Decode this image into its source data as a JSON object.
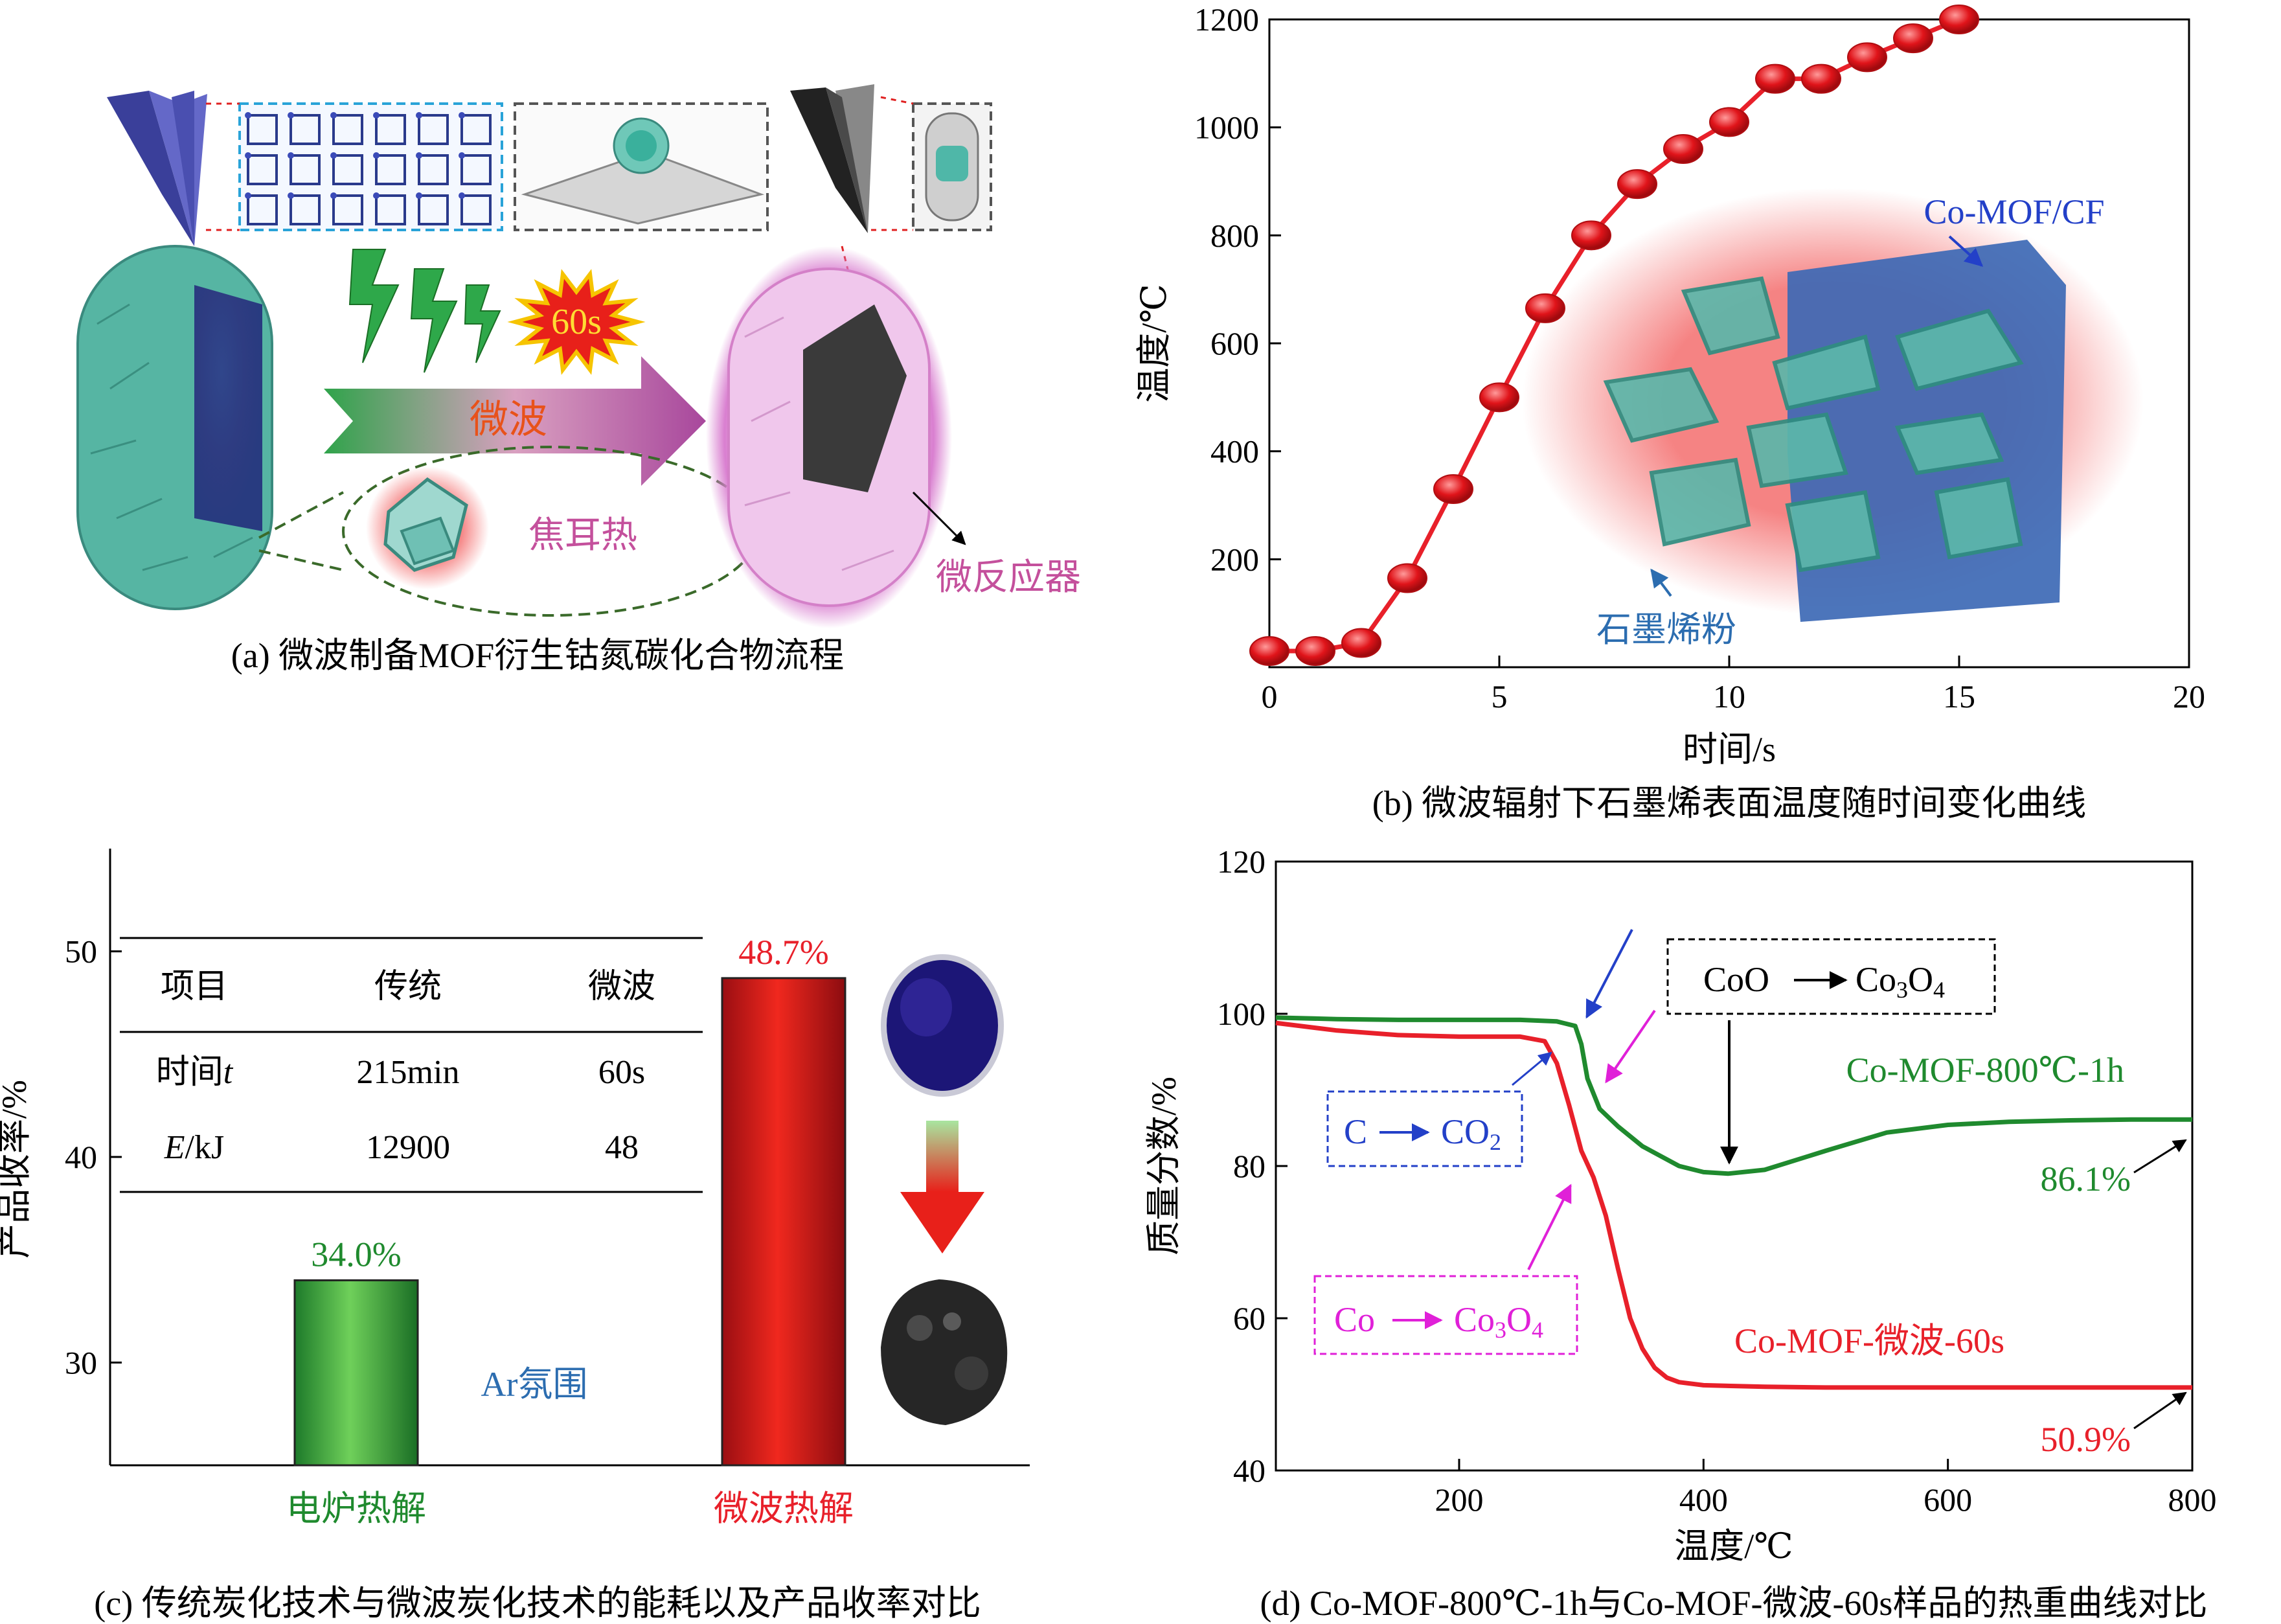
{
  "colors": {
    "red": "#e8202a",
    "green": "#1f8a2e",
    "blue": "#2340c8",
    "steel_blue": "#2c6db0",
    "magenta": "#e020d8",
    "teal": "#4fb7a8",
    "pink": "#c4509c",
    "orange": "#e8521a"
  },
  "panel_a": {
    "caption": "(a) 微波制备MOF衍生钴氮碳化合物流程",
    "label_60s": "60s",
    "label_microwave": "微波",
    "label_joule": "焦耳热",
    "label_microreactor": "微反应器",
    "icons": [
      "lightning-icon",
      "starburst-icon",
      "arrow-right-icon"
    ]
  },
  "chart_data": [
    {
      "id": "b",
      "type": "line",
      "caption": "(b) 微波辐射下石墨烯表面温度随时间变化曲线",
      "xlabel": "时间/s",
      "ylabel": "温度/℃",
      "xlim": [
        0,
        20
      ],
      "ylim": [
        0,
        1200
      ],
      "xticks": [
        0,
        5,
        10,
        15,
        20
      ],
      "yticks": [
        200,
        400,
        600,
        800,
        1000,
        1200
      ],
      "series": [
        {
          "name": "temperature",
          "x": [
            0,
            1,
            2,
            3,
            4,
            5,
            6,
            7,
            8,
            9,
            10,
            11,
            12,
            13,
            14,
            15
          ],
          "y": [
            30,
            30,
            45,
            165,
            330,
            500,
            665,
            800,
            895,
            960,
            1010,
            1090,
            1090,
            1130,
            1165,
            1200
          ]
        }
      ],
      "annotations": {
        "co_mof_cf": "Co-MOF/CF",
        "graphene_powder": "石墨烯粉"
      }
    },
    {
      "id": "c",
      "type": "bar",
      "caption": "(c) 传统炭化技术与微波炭化技术的能耗以及产品收率对比",
      "ylabel": "产品收率/%",
      "ylim": [
        25,
        55
      ],
      "yticks": [
        30,
        40,
        50
      ],
      "categories": [
        "电炉热解",
        "微波热解"
      ],
      "values": [
        34.0,
        48.7
      ],
      "value_labels": [
        "34.0%",
        "48.7%"
      ],
      "annotation": "Ar氛围",
      "table": {
        "headers": [
          "项目",
          "传统",
          "微波"
        ],
        "rows": [
          {
            "item": "时间",
            "italic": "t",
            "traditional": "215min",
            "microwave": "60s"
          },
          {
            "item": "/kJ",
            "italic": "E",
            "traditional": "12900",
            "microwave": "48"
          }
        ]
      }
    },
    {
      "id": "d",
      "type": "line",
      "caption": "(d) Co-MOF-800℃-1h与Co-MOF-微波-60s样品的热重曲线对比",
      "xlabel": "温度/℃",
      "ylabel": "质量分数/%",
      "xlim": [
        50,
        800
      ],
      "ylim": [
        40,
        120
      ],
      "xticks": [
        200,
        400,
        600,
        800
      ],
      "yticks": [
        40,
        60,
        80,
        100,
        120
      ],
      "series": [
        {
          "name": "Co-MOF-800℃-1h",
          "final_label": "86.1%",
          "x": [
            50,
            100,
            150,
            200,
            250,
            280,
            295,
            300,
            305,
            315,
            330,
            350,
            380,
            400,
            420,
            450,
            500,
            550,
            600,
            650,
            700,
            750,
            800
          ],
          "y": [
            99.5,
            99.3,
            99.2,
            99.2,
            99.2,
            99.0,
            98.4,
            96,
            91.5,
            87.5,
            85.2,
            82.6,
            80.0,
            79.2,
            79.0,
            79.5,
            82.0,
            84.4,
            85.4,
            85.8,
            86.0,
            86.1,
            86.1
          ]
        },
        {
          "name": "Co-MOF-微波-60s",
          "final_label": "50.9%",
          "x": [
            50,
            100,
            150,
            200,
            250,
            270,
            280,
            290,
            300,
            310,
            320,
            330,
            340,
            350,
            360,
            370,
            380,
            400,
            450,
            500,
            600,
            700,
            800
          ],
          "y": [
            98.8,
            97.8,
            97.2,
            97.0,
            97.0,
            96.4,
            93.5,
            88,
            82,
            78.5,
            73.5,
            66.5,
            60,
            56,
            53.5,
            52.2,
            51.6,
            51.2,
            51.0,
            50.9,
            50.9,
            50.9,
            50.9
          ]
        }
      ],
      "annotations": {
        "co_to_co3o4": "CoO",
        "co3o4": "Co",
        "c_to_co2_c": "C",
        "c_to_co2_co": "CO",
        "co_box_co": "Co",
        "co_box_co3o4": "Co",
        "sub2": "2",
        "sub3": "3",
        "sub4": "4",
        "ox": "O"
      }
    }
  ]
}
